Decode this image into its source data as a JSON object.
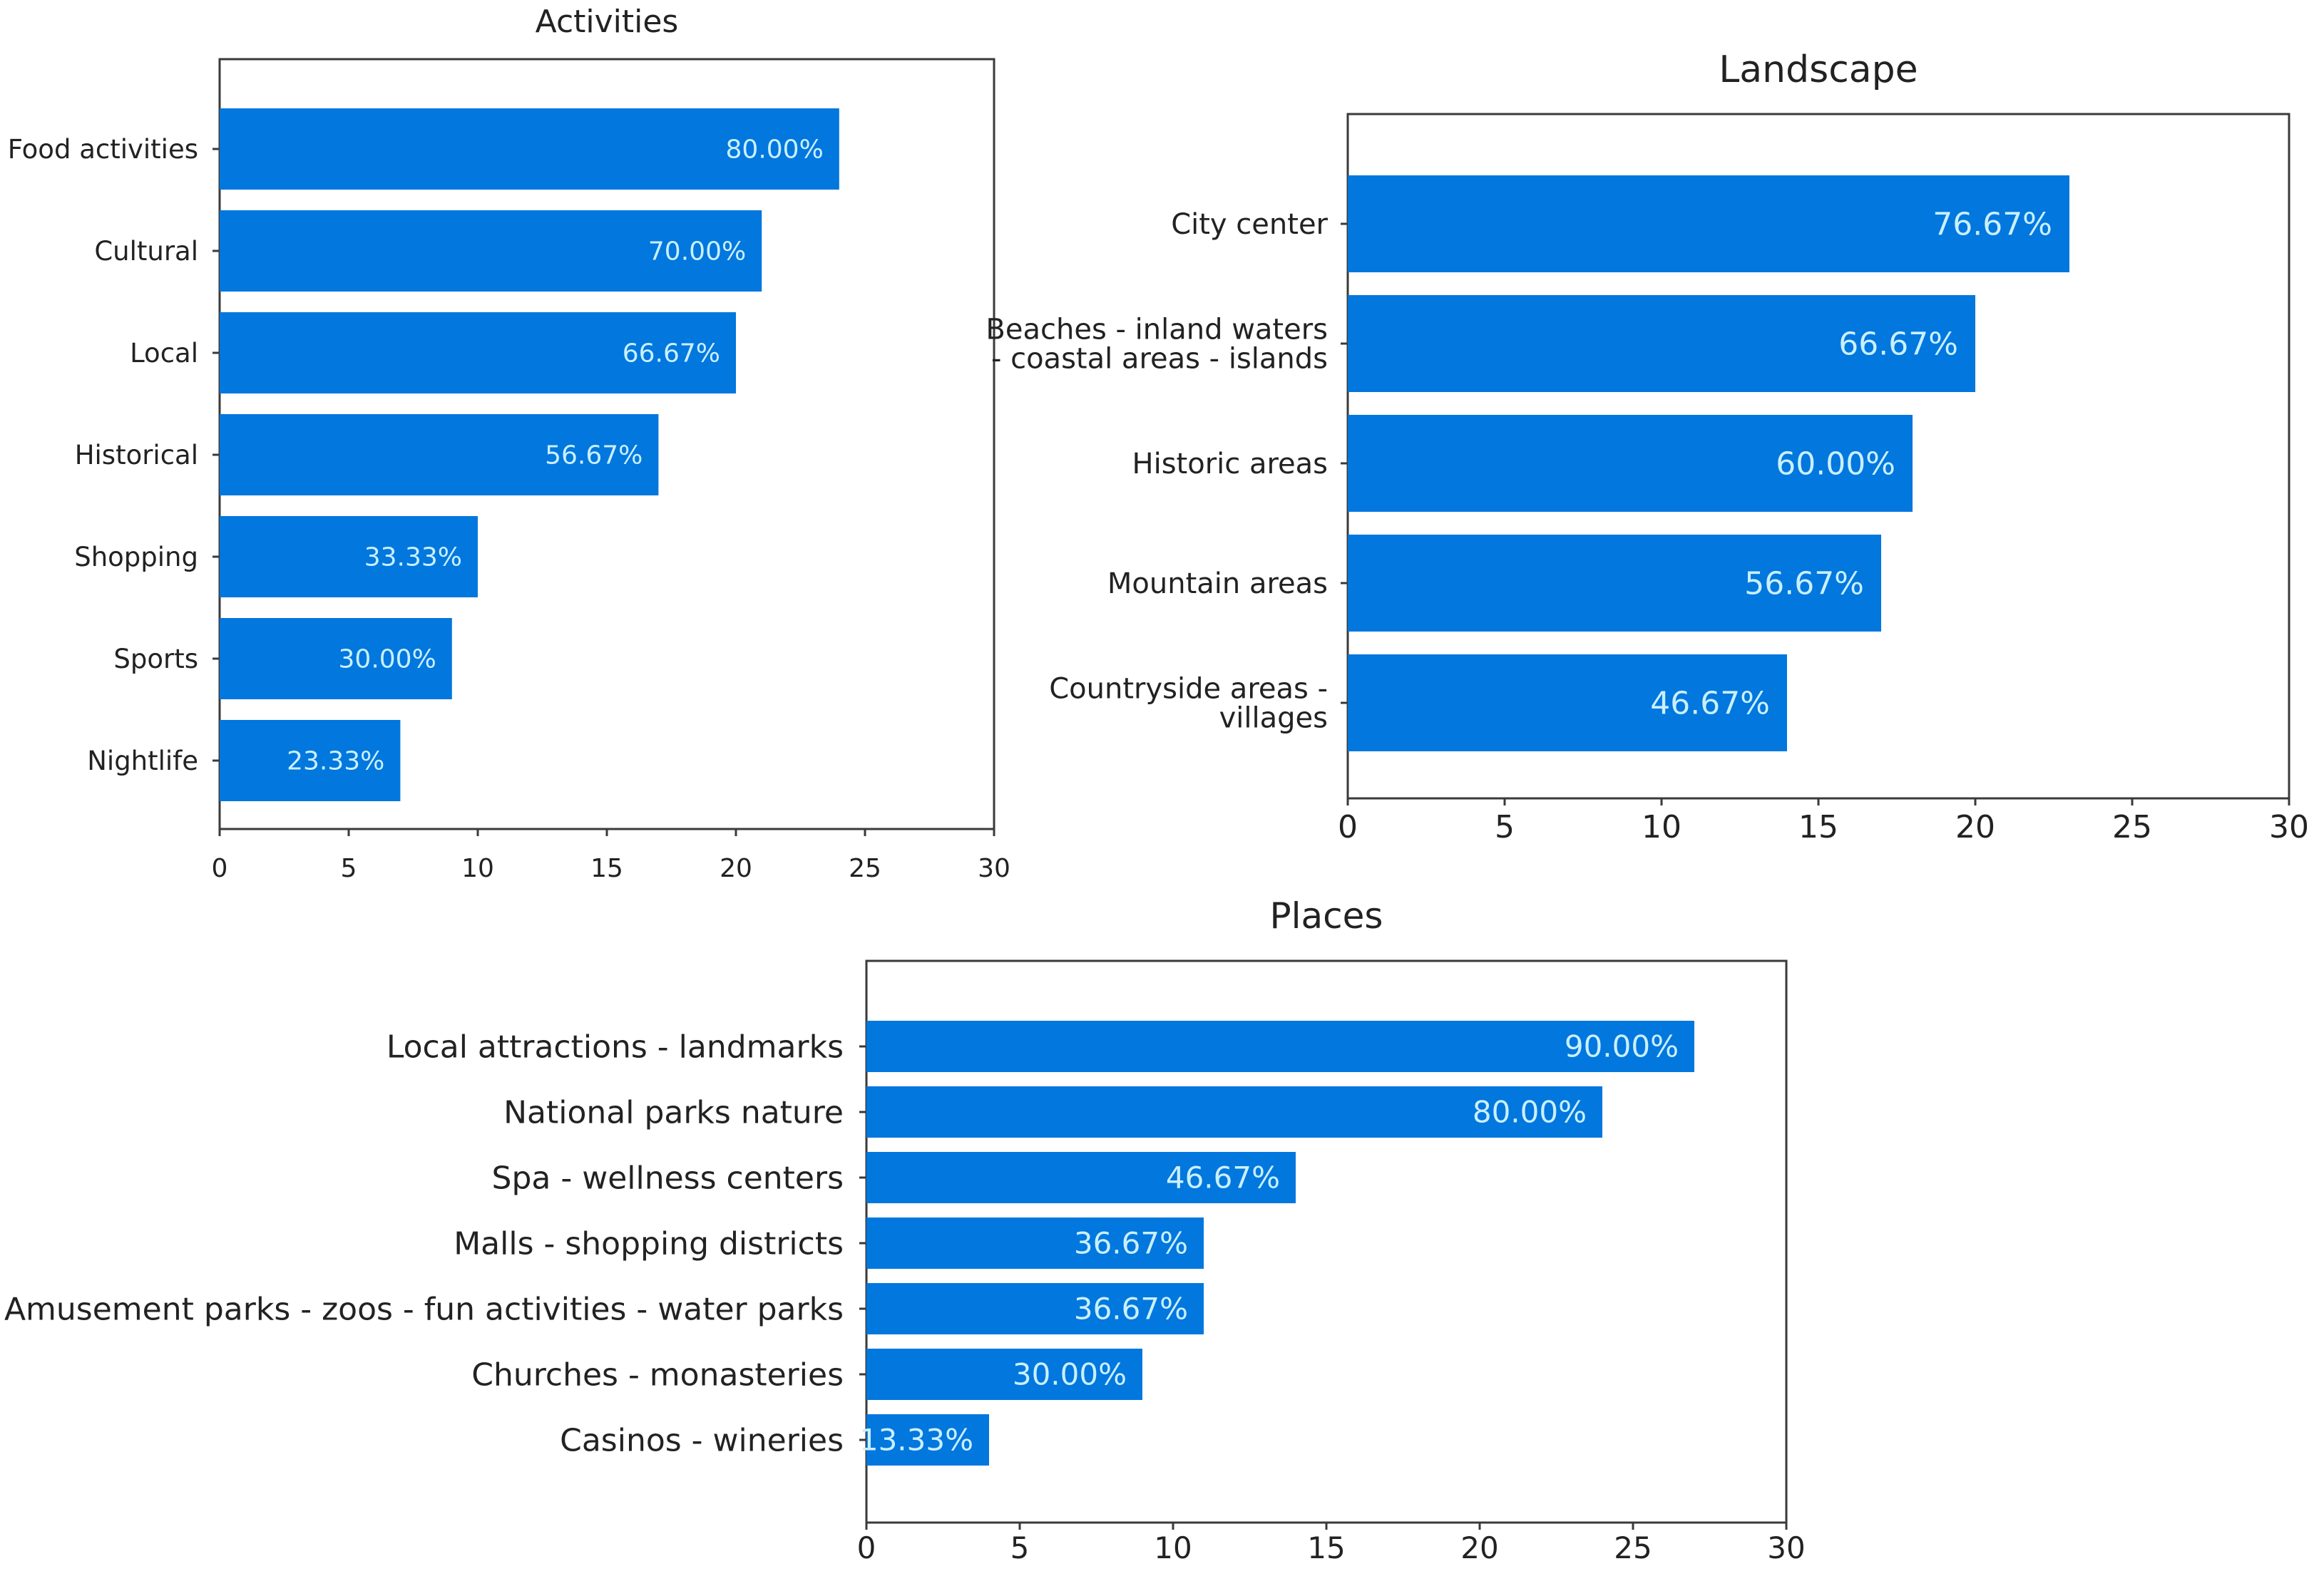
{
  "chart_data": [
    {
      "type": "bar",
      "orientation": "horizontal",
      "title": "Activities",
      "categories": [
        "Food activities",
        "Cultural",
        "Local",
        "Historical",
        "Shopping",
        "Sports",
        "Nightlife"
      ],
      "values": [
        24,
        21,
        20,
        17,
        10,
        9,
        7
      ],
      "value_labels": [
        "80.00%",
        "70.00%",
        "66.67%",
        "56.67%",
        "33.33%",
        "30.00%",
        "23.33%"
      ],
      "xlim": [
        0,
        30
      ],
      "xticks": [
        "0",
        "5",
        "10",
        "15",
        "20",
        "25",
        "30"
      ],
      "bar_color": "#0277dd",
      "label_color": "#c9f0ff"
    },
    {
      "type": "bar",
      "orientation": "horizontal",
      "title": "Landscape",
      "categories": [
        "City center",
        "Beaches - inland waters - coastal areas - islands",
        "Historic areas",
        "Mountain areas",
        "Countryside areas - villages"
      ],
      "category_lines": [
        [
          "City center"
        ],
        [
          "Beaches - inland waters",
          "- coastal areas - islands"
        ],
        [
          "Historic areas"
        ],
        [
          "Mountain areas"
        ],
        [
          "Countryside areas -",
          "villages"
        ]
      ],
      "values": [
        23,
        20,
        18,
        17,
        14
      ],
      "value_labels": [
        "76.67%",
        "66.67%",
        "60.00%",
        "56.67%",
        "46.67%"
      ],
      "xlim": [
        0,
        30
      ],
      "xticks": [
        "0",
        "5",
        "10",
        "15",
        "20",
        "25",
        "30"
      ],
      "bar_color": "#0277dd",
      "label_color": "#c9f0ff"
    },
    {
      "type": "bar",
      "orientation": "horizontal",
      "title": "Places",
      "categories": [
        "Local attractions - landmarks",
        "National parks   nature",
        "Spa - wellness centers",
        "Malls - shopping districts",
        "Amusement parks - zoos - fun activities - water parks",
        "Churches - monasteries",
        "Casinos - wineries"
      ],
      "values": [
        27,
        24,
        14,
        11,
        11,
        9,
        4
      ],
      "value_labels": [
        "90.00%",
        "80.00%",
        "46.67%",
        "36.67%",
        "36.67%",
        "30.00%",
        "13.33%"
      ],
      "xlim": [
        0,
        30
      ],
      "xticks": [
        "0",
        "5",
        "10",
        "15",
        "20",
        "25",
        "30"
      ],
      "bar_color": "#0277dd",
      "label_color": "#c9f0ff"
    }
  ]
}
